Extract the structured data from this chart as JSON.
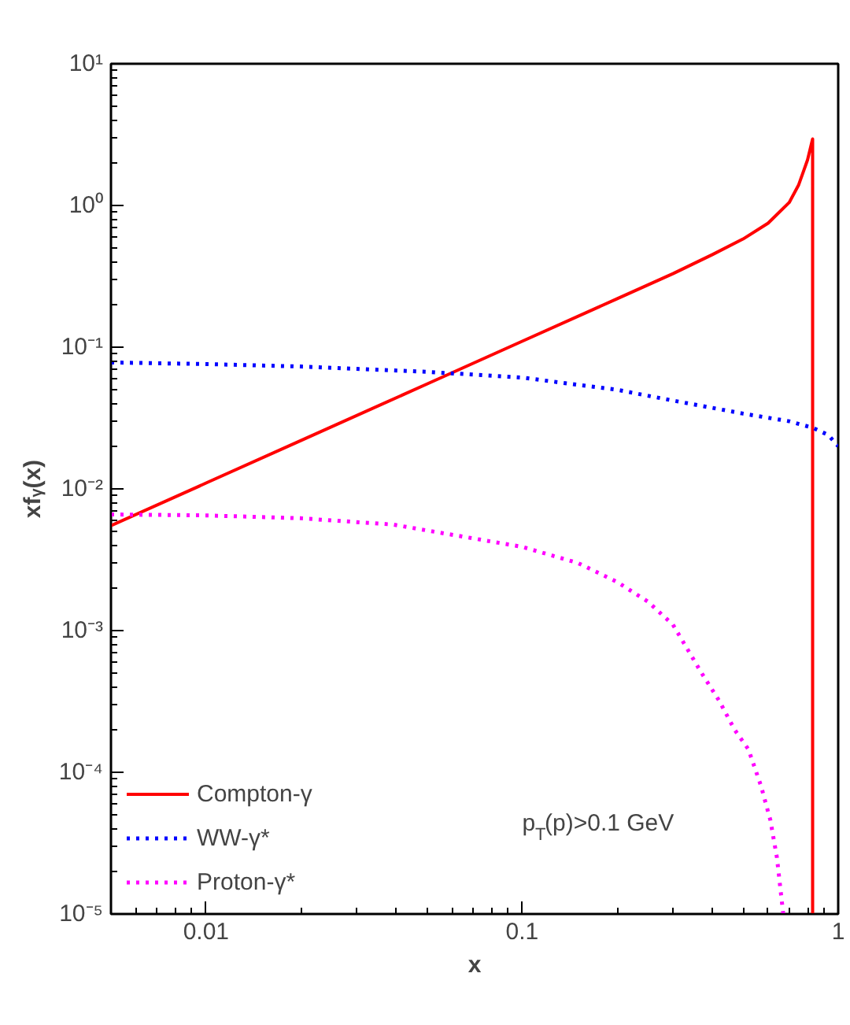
{
  "chart_data": {
    "type": "line",
    "xlabel": "x",
    "ylabel": "xfᵧ(x)",
    "log": "xy",
    "xlim": [
      0.005,
      1
    ],
    "ylim": [
      1e-05,
      10
    ],
    "xticks": [
      0.01,
      0.1,
      1
    ],
    "yticks": [
      {
        "value": 1e-05,
        "label": "10⁻⁵"
      },
      {
        "value": 0.0001,
        "label": "10⁻⁴"
      },
      {
        "value": 0.001,
        "label": "10⁻³"
      },
      {
        "value": 0.01,
        "label": "10⁻²"
      },
      {
        "value": 0.1,
        "label": "10⁻¹"
      },
      {
        "value": 1,
        "label": "10⁰"
      },
      {
        "value": 10,
        "label": "10¹"
      }
    ],
    "grid": false,
    "legend": "bottom left",
    "annotations": [
      "p$_{T}$(p)>0.1 GeV"
    ],
    "series": [
      {
        "name": "Compton-γ",
        "color": "#ff0000",
        "line_style": "solid",
        "x": [
          0.005,
          0.01,
          0.02,
          0.05,
          0.1,
          0.2,
          0.3,
          0.4,
          0.5,
          0.6,
          0.7,
          0.75,
          0.8,
          0.83,
          0.83
        ],
        "values": [
          0.0055,
          0.011,
          0.022,
          0.055,
          0.11,
          0.22,
          0.33,
          0.45,
          0.58,
          0.75,
          1.05,
          1.4,
          2.1,
          2.95,
          1e-05
        ]
      },
      {
        "name": "WW-γ*",
        "color": "#0000ff",
        "line_style": "dotted",
        "x": [
          0.005,
          0.01,
          0.02,
          0.05,
          0.1,
          0.2,
          0.3,
          0.5,
          0.7,
          0.83,
          0.93,
          1.0
        ],
        "values": [
          0.078,
          0.076,
          0.073,
          0.067,
          0.061,
          0.05,
          0.042,
          0.034,
          0.03,
          0.027,
          0.024,
          0.02
        ]
      },
      {
        "name": "Proton-γ*",
        "color": "#ff00ff",
        "line_style": "dotted",
        "x": [
          0.005,
          0.01,
          0.02,
          0.039,
          0.1,
          0.15,
          0.2,
          0.25,
          0.3,
          0.37,
          0.42,
          0.47,
          0.52,
          0.57,
          0.61,
          0.64,
          0.67
        ],
        "values": [
          0.0066,
          0.0065,
          0.0062,
          0.0056,
          0.0039,
          0.003,
          0.0022,
          0.0016,
          0.0011,
          0.0005,
          0.00032,
          0.0002,
          0.000145,
          8e-05,
          4.6e-05,
          2.5e-05,
          1e-05
        ]
      }
    ]
  }
}
